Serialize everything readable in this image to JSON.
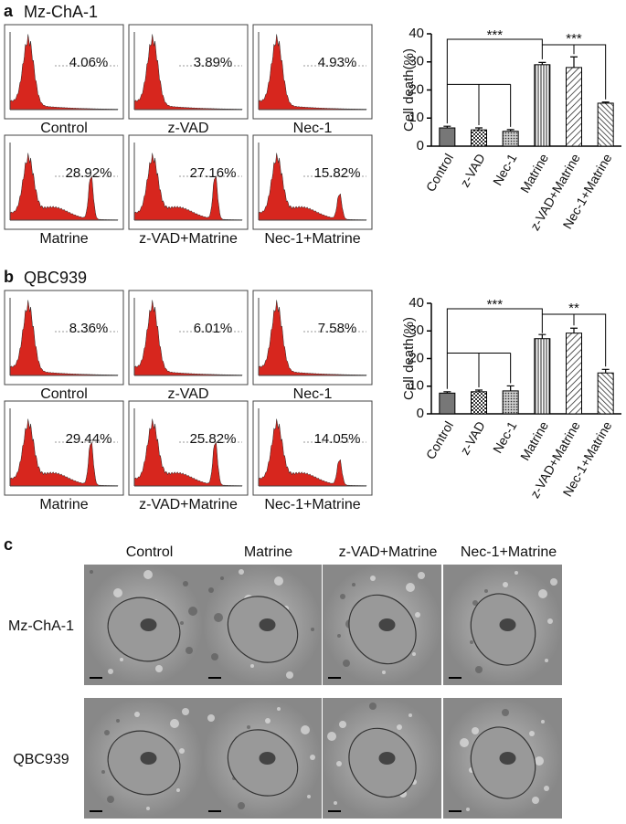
{
  "panels": [
    {
      "label": "a",
      "title": "Mz-ChA-1",
      "histograms": [
        {
          "name": "Control",
          "percent": "4.06%"
        },
        {
          "name": "z-VAD",
          "percent": "3.89%"
        },
        {
          "name": "Nec-1",
          "percent": "4.93%"
        },
        {
          "name": "Matrine",
          "percent": "28.92%"
        },
        {
          "name": "z-VAD+Matrine",
          "percent": "27.16%"
        },
        {
          "name": "Nec-1+Matrine",
          "percent": "15.82%"
        }
      ]
    },
    {
      "label": "b",
      "title": "QBC939",
      "histograms": [
        {
          "name": "Control",
          "percent": "8.36%"
        },
        {
          "name": "z-VAD",
          "percent": "6.01%"
        },
        {
          "name": "Nec-1",
          "percent": "7.58%"
        },
        {
          "name": "Matrine",
          "percent": "29.44%"
        },
        {
          "name": "z-VAD+Matrine",
          "percent": "25.82%"
        },
        {
          "name": "Nec-1+Matrine",
          "percent": "14.05%"
        }
      ]
    }
  ],
  "chart_data": [
    {
      "type": "bar",
      "y_label": "Cell death(%)",
      "categories": [
        "Control",
        "z-VAD",
        "Nec-1",
        "Matrine",
        "z-VAD+Matrine",
        "Nec-1+Matrine"
      ],
      "values": [
        6.5,
        5.8,
        5.3,
        29,
        28,
        15.3
      ],
      "errors": [
        0.6,
        0.7,
        0.6,
        0.8,
        3.8,
        0.4
      ],
      "ylim": [
        0,
        40
      ],
      "yticks": [
        0,
        10,
        20,
        30,
        40
      ],
      "annotations": [
        "***",
        "***"
      ]
    },
    {
      "type": "bar",
      "y_label": "Cell death(%)",
      "categories": [
        "Control",
        "z-VAD",
        "Nec-1",
        "Matrine",
        "z-VAD+Matrine",
        "Nec-1+Matrine"
      ],
      "values": [
        7.5,
        8,
        8.3,
        27.2,
        29.2,
        14.8
      ],
      "errors": [
        0.5,
        0.6,
        1.8,
        1.5,
        1.8,
        1.3
      ],
      "ylim": [
        0,
        40
      ],
      "yticks": [
        0,
        10,
        20,
        30,
        40
      ],
      "annotations": [
        "***",
        "**"
      ]
    }
  ],
  "em": {
    "label": "c",
    "columns": [
      "Control",
      "Matrine",
      "z-VAD+Matrine",
      "Nec-1+Matrine"
    ],
    "rows": [
      "Mz-ChA-1",
      "QBC939"
    ]
  }
}
